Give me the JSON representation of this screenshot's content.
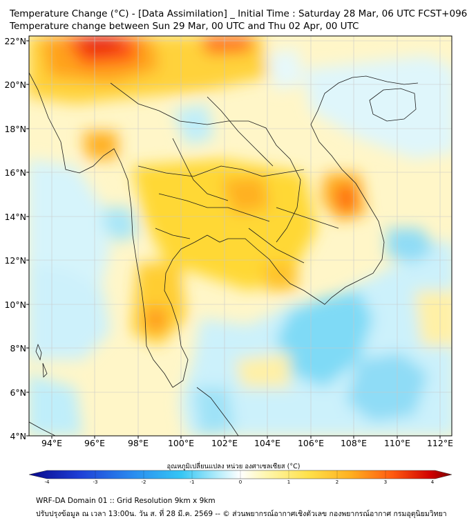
{
  "title": {
    "line1": "Temperature Change (°C) - [Data Assimilation] _ Initial Time : Saturday 28 Mar, 06 UTC FCST+096",
    "line2": "Temperature change between Sun 29 Mar, 00 UTC and Thu 02 Apr, 00 UTC"
  },
  "map": {
    "lat_labels": [
      "22°N",
      "20°N",
      "18°N",
      "16°N",
      "14°N",
      "12°N",
      "10°N",
      "8°N",
      "6°N",
      "4°N"
    ],
    "lon_labels": [
      "94°E",
      "96°E",
      "98°E",
      "100°E",
      "102°E",
      "104°E",
      "106°E",
      "108°E",
      "110°E",
      "112°E"
    ],
    "lat_range": [
      4,
      22.2
    ],
    "lon_range": [
      93,
      112.5
    ]
  },
  "colorbar": {
    "title": "อุณหภูมิเปลี่ยนแปลง หน่วย องศาเซลเซียส (°C)",
    "ticks": [
      "-4",
      "-3",
      "-2",
      "-1",
      "0",
      "1",
      "2",
      "3",
      "4"
    ],
    "range": [
      -4,
      4
    ]
  },
  "footer": {
    "line1": "WRF-DA Domain 01 :: Grid Resolution 9km x 9km",
    "line2": "ปรับปรุงข้อมูล ณ เวลา 13:00น. วัน ส. ที่ 28 มี.ค. 2569 -- © ส่วนพยากรณ์อากาศเชิงตัวเลข กองพยากรณ์อากาศ กรมอุตุนิยมวิทยา"
  }
}
